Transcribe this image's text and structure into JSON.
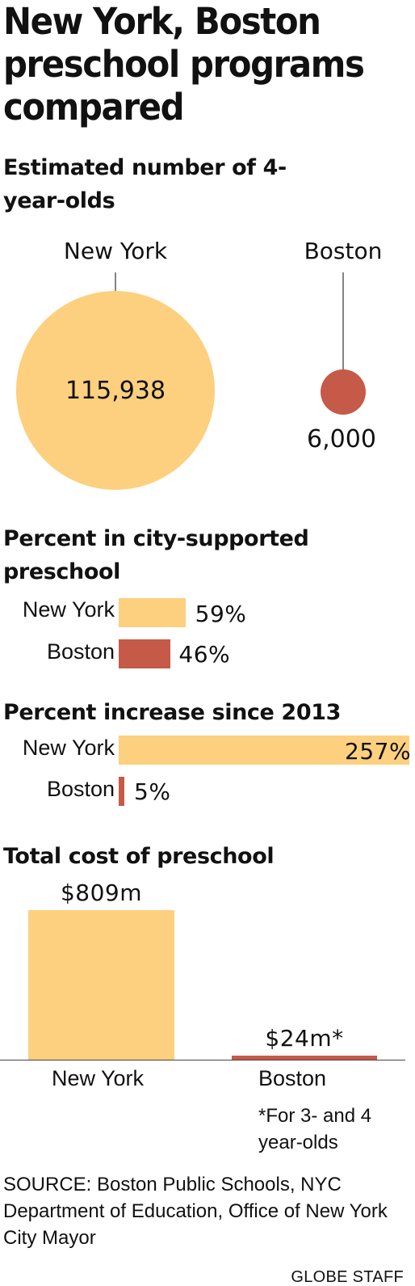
{
  "title": "New York, Boston preschool programs compared",
  "colors": {
    "new_york": "#fdd07f",
    "boston": "#c65a48",
    "text": "#111111",
    "line": "#333333"
  },
  "chart_data": [
    {
      "type": "bubble",
      "title": "Estimated number of 4-year-olds",
      "categories": [
        "New York",
        "Boston"
      ],
      "values": [
        115938,
        6000
      ],
      "data_labels": [
        "115,938",
        "6,000"
      ]
    },
    {
      "type": "bar",
      "orientation": "horizontal",
      "title": "Percent in city-supported preschool",
      "categories": [
        "New York",
        "Boston"
      ],
      "values": [
        59,
        46
      ],
      "data_labels": [
        "59%",
        "46%"
      ]
    },
    {
      "type": "bar",
      "orientation": "horizontal",
      "title": "Percent increase since 2013",
      "categories": [
        "New York",
        "Boston"
      ],
      "values": [
        257,
        5
      ],
      "data_labels": [
        "257%",
        "5%"
      ]
    },
    {
      "type": "bar",
      "orientation": "vertical",
      "title": "Total cost of preschool",
      "categories": [
        "New York",
        "Boston"
      ],
      "values": [
        809,
        24
      ],
      "data_labels": [
        "$809m",
        "$24m*"
      ],
      "footnote": "*For 3- and 4 year-olds"
    }
  ],
  "source": "SOURCE: Boston Public Schools, NYC Department of Education, Office of New York City Mayor",
  "credit": "GLOBE STAFF"
}
